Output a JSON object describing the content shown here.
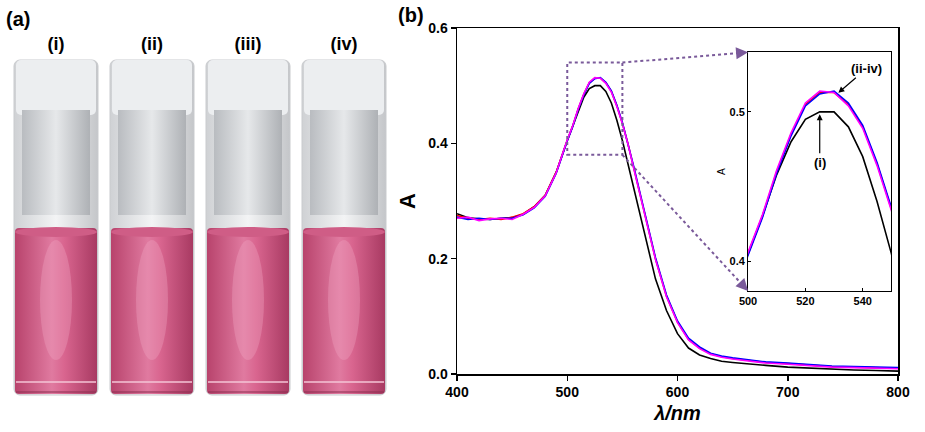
{
  "figure": {
    "panels": [
      {
        "label": "(a)",
        "vial_labels": [
          "(i)",
          "(ii)",
          "(iii)",
          "(iv)"
        ]
      },
      {
        "label": "(b)"
      }
    ]
  },
  "chart_data": {
    "type": "line",
    "x_label": "λ/nm",
    "y_label": "A",
    "x": [
      400,
      410,
      420,
      430,
      440,
      450,
      460,
      470,
      480,
      490,
      500,
      505,
      510,
      515,
      520,
      525,
      530,
      535,
      540,
      545,
      550,
      555,
      560,
      570,
      580,
      590,
      600,
      610,
      620,
      630,
      640,
      650,
      660,
      670,
      680,
      700,
      720,
      740,
      760,
      780,
      800
    ],
    "series": [
      {
        "name": "(i)",
        "color": "#000000",
        "values": [
          0.278,
          0.271,
          0.269,
          0.268,
          0.27,
          0.271,
          0.277,
          0.29,
          0.31,
          0.35,
          0.405,
          0.43,
          0.458,
          0.48,
          0.495,
          0.5,
          0.5,
          0.49,
          0.47,
          0.44,
          0.405,
          0.365,
          0.32,
          0.24,
          0.165,
          0.11,
          0.07,
          0.045,
          0.033,
          0.027,
          0.022,
          0.02,
          0.018,
          0.016,
          0.015,
          0.012,
          0.01,
          0.008,
          0.007,
          0.006,
          0.005
        ]
      },
      {
        "name": "(ii)",
        "color": "#ff0000",
        "values": [
          0.275,
          0.27,
          0.268,
          0.27,
          0.268,
          0.272,
          0.278,
          0.29,
          0.31,
          0.35,
          0.405,
          0.43,
          0.46,
          0.485,
          0.505,
          0.513,
          0.513,
          0.505,
          0.49,
          0.465,
          0.435,
          0.4,
          0.36,
          0.28,
          0.2,
          0.135,
          0.09,
          0.06,
          0.045,
          0.035,
          0.03,
          0.027,
          0.025,
          0.023,
          0.02,
          0.018,
          0.015,
          0.013,
          0.012,
          0.011,
          0.01
        ]
      },
      {
        "name": "(iii)",
        "color": "#0000ff",
        "values": [
          0.272,
          0.268,
          0.27,
          0.268,
          0.27,
          0.27,
          0.276,
          0.288,
          0.308,
          0.348,
          0.404,
          0.429,
          0.459,
          0.484,
          0.504,
          0.512,
          0.514,
          0.506,
          0.491,
          0.466,
          0.436,
          0.401,
          0.362,
          0.282,
          0.202,
          0.137,
          0.092,
          0.062,
          0.047,
          0.036,
          0.031,
          0.028,
          0.026,
          0.024,
          0.021,
          0.019,
          0.016,
          0.014,
          0.013,
          0.012,
          0.011
        ]
      },
      {
        "name": "(iv)",
        "color": "#ff00ff",
        "values": [
          0.27,
          0.272,
          0.266,
          0.269,
          0.27,
          0.268,
          0.277,
          0.289,
          0.309,
          0.349,
          0.406,
          0.431,
          0.461,
          0.486,
          0.506,
          0.514,
          0.513,
          0.504,
          0.489,
          0.464,
          0.434,
          0.399,
          0.359,
          0.279,
          0.199,
          0.134,
          0.089,
          0.059,
          0.044,
          0.034,
          0.029,
          0.026,
          0.024,
          0.022,
          0.019,
          0.017,
          0.014,
          0.012,
          0.011,
          0.01,
          0.009
        ]
      }
    ],
    "xlim": [
      400,
      800
    ],
    "xticks": [
      400,
      500,
      600,
      700,
      800
    ],
    "ylim": [
      0,
      0.6
    ],
    "yticks": [
      {
        "value": 0,
        "label": "0.0"
      },
      {
        "value": 0.2,
        "label": "0.2"
      },
      {
        "value": 0.4,
        "label": "0.4"
      },
      {
        "value": 0.6,
        "label": "0.6"
      }
    ],
    "grid": false,
    "inset": {
      "y_label": "A",
      "annotations": [
        "(ii-iv)",
        "(i)"
      ],
      "xlim": [
        500,
        550
      ],
      "xticks": [
        500,
        520,
        540
      ],
      "ylim": [
        0.38,
        0.54
      ],
      "yticks": [
        0.4,
        0.5
      ]
    }
  }
}
